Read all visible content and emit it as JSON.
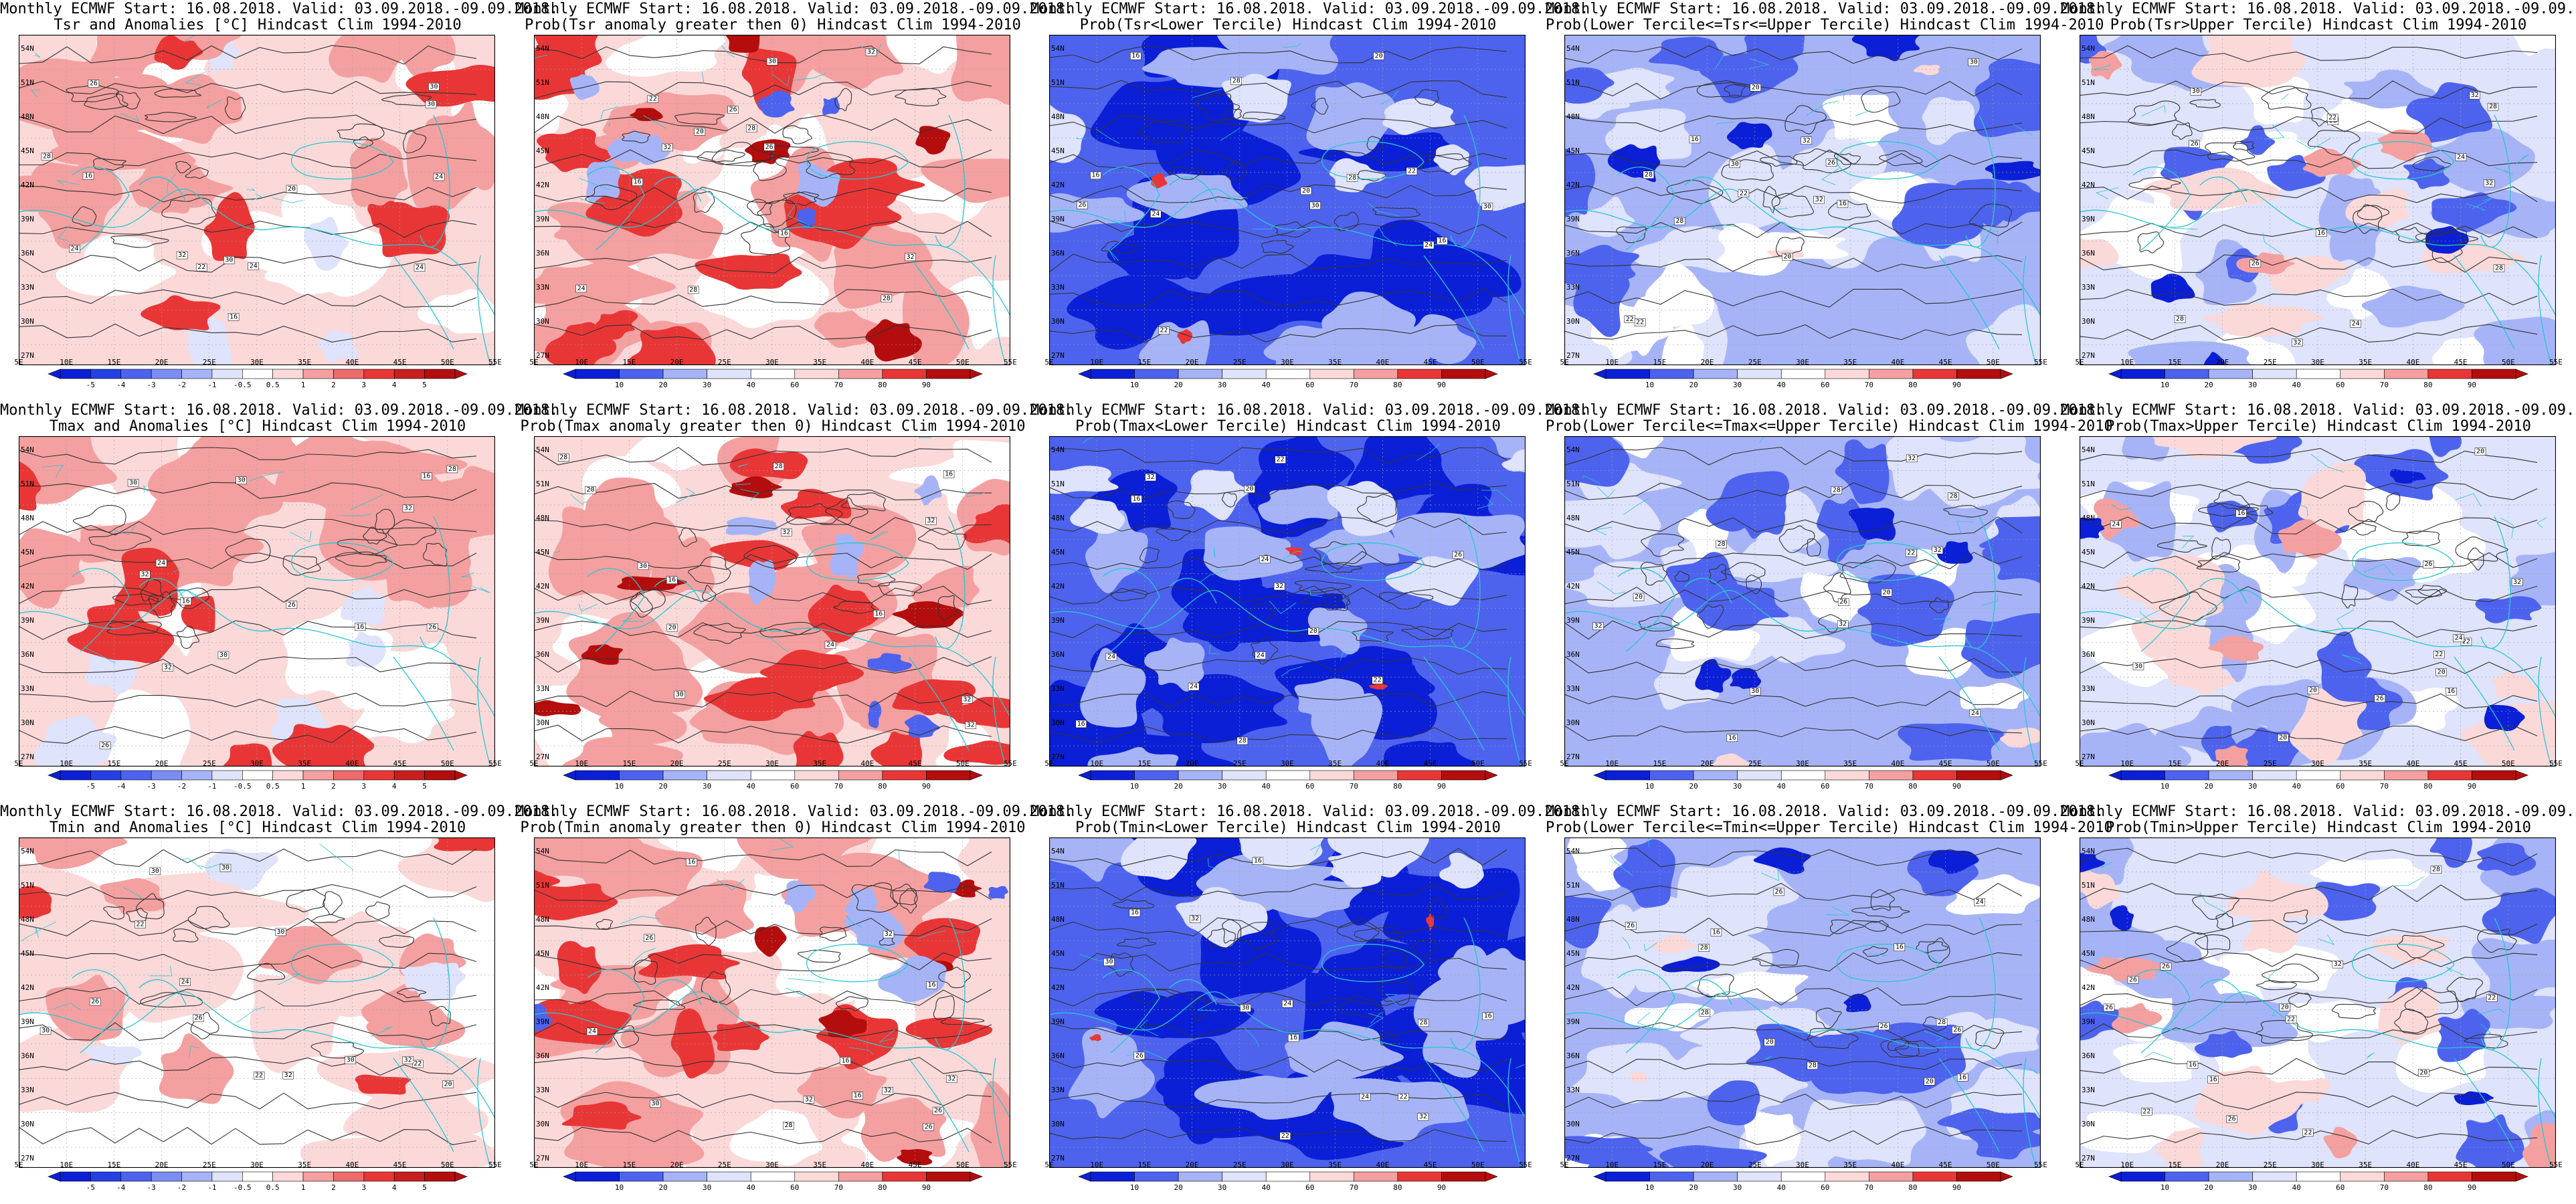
{
  "header": "Monthly ECMWF Start: 16.08.2018. Valid: 03.09.2018.-09.09.2018.",
  "colors": {
    "deep_blue": "#0b1fd6",
    "blue": "#4d63ee",
    "light_blue": "#a6b4f7",
    "pale_blue": "#dfe3fb",
    "white": "#ffffff",
    "pale_red": "#fbd9d9",
    "light_red": "#f4a0a0",
    "red": "#e83636",
    "deep_red": "#b40d0d",
    "coast": "#27c7d1",
    "contour": "#333333"
  },
  "lat_labels": [
    "54N",
    "51N",
    "48N",
    "45N",
    "42N",
    "39N",
    "36N",
    "33N",
    "30N",
    "27N"
  ],
  "lon_labels": [
    "5E",
    "10E",
    "15E",
    "20E",
    "25E",
    "30E",
    "35E",
    "40E",
    "45E",
    "50E",
    "55E"
  ],
  "colorbars": {
    "anom": [
      "-5",
      "-4",
      "-3",
      "-2",
      "-1",
      "-0.5",
      "0.5",
      "1",
      "2",
      "3",
      "4",
      "5"
    ],
    "prob": [
      "10",
      "20",
      "30",
      "40",
      "60",
      "70",
      "80",
      "90"
    ]
  },
  "contour_labels": [
    "16",
    "20",
    "22",
    "24",
    "26",
    "28",
    "30",
    "32"
  ],
  "panels": [
    {
      "title": "Tsr and Anomalies [°C] Hindcast Clim 1994-2010",
      "kind": "anom",
      "colorbar": "anom"
    },
    {
      "title": "Prob(Tsr anomaly greater then 0) Hindcast Clim 1994-2010",
      "kind": "probhot",
      "colorbar": "prob"
    },
    {
      "title": "Prob(Tsr<Lower Tercile) Hindcast Clim 1994-2010",
      "kind": "probcold",
      "colorbar": "prob"
    },
    {
      "title": "Prob(Lower Tercile<=Tsr<=Upper Tercile) Hindcast Clim 1994-2010",
      "kind": "probmid",
      "colorbar": "prob"
    },
    {
      "title": "Prob(Tsr>Upper Tercile) Hindcast Clim 1994-2010",
      "kind": "probupper",
      "colorbar": "prob"
    },
    {
      "title": "Tmax and Anomalies [°C] Hindcast Clim 1994-2010",
      "kind": "anom",
      "colorbar": "anom"
    },
    {
      "title": "Prob(Tmax anomaly greater then 0) Hindcast Clim 1994-2010",
      "kind": "probhot",
      "colorbar": "prob"
    },
    {
      "title": "Prob(Tmax<Lower Tercile) Hindcast Clim 1994-2010",
      "kind": "probcold",
      "colorbar": "prob"
    },
    {
      "title": "Prob(Lower Tercile<=Tmax<=Upper Tercile) Hindcast Clim 1994-2010",
      "kind": "probmid",
      "colorbar": "prob"
    },
    {
      "title": "Prob(Tmax>Upper Tercile) Hindcast Clim 1994-2010",
      "kind": "probupper",
      "colorbar": "prob"
    },
    {
      "title": "Tmin and Anomalies [°C] Hindcast Clim 1994-2010",
      "kind": "anomlight",
      "colorbar": "anom"
    },
    {
      "title": "Prob(Tmin anomaly greater then 0) Hindcast Clim 1994-2010",
      "kind": "probhot",
      "colorbar": "prob"
    },
    {
      "title": "Prob(Tmin<Lower Tercile) Hindcast Clim 1994-2010",
      "kind": "probcold",
      "colorbar": "prob"
    },
    {
      "title": "Prob(Lower Tercile<=Tmin<=Upper Tercile) Hindcast Clim 1994-2010",
      "kind": "probmid",
      "colorbar": "prob"
    },
    {
      "title": "Prob(Tmin>Upper Tercile) Hindcast Clim 1994-2010",
      "kind": "probupper",
      "colorbar": "prob"
    }
  ]
}
